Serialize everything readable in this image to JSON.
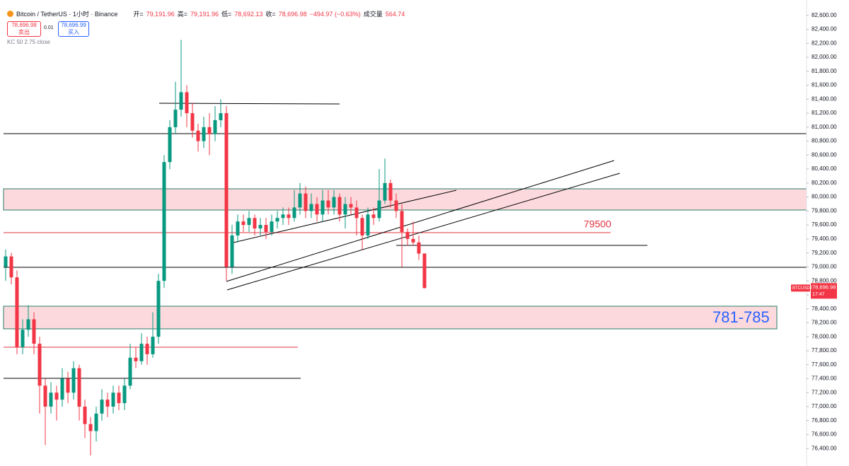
{
  "chart_data": {
    "type": "candlestick",
    "header": {
      "symbol": "Bitcoin / TetherUS · 1小时 · Binance",
      "open_label": "开=",
      "open": "79,191.96",
      "high_label": "高=",
      "high": "79,191.96",
      "low_label": "低=",
      "low": "78,692.13",
      "close_label": "收=",
      "close": "78,696.98",
      "change": "−494.97 (−0.63%)",
      "volume_label": "成交量",
      "volume": "564.74"
    },
    "sell_price": "78,696.98",
    "sell_label": "卖出",
    "spread": "0.01",
    "buy_price": "78,696.99",
    "buy_label": "买入",
    "indicator": "KC 50 2.75 close",
    "annotations": [
      "79500",
      "781-785"
    ],
    "price_tag": {
      "symbol": "BTCUSDT",
      "value": 78696.98,
      "label": "78,696.98",
      "countdown": "17:47"
    },
    "up_color": "#089981",
    "down_color": "#f23645",
    "open": [
      79000,
      79150,
      78850,
      77850,
      78100,
      78250,
      77900,
      77300,
      77000,
      77200,
      77100,
      77400,
      77200,
      77550,
      77000,
      76750,
      76650,
      76900,
      77100,
      77000,
      77200,
      77050,
      77300,
      77700,
      77650,
      77900,
      77750,
      78000,
      78800,
      80500,
      81000,
      81250,
      81500,
      81200,
      80950,
      80800,
      81000,
      80900,
      81100,
      81200,
      79000,
      79450,
      79650,
      79600,
      79700,
      79550,
      79600,
      79500,
      79650,
      79700,
      79750,
      79700,
      79850,
      80050,
      79800,
      79900,
      79750,
      79950,
      79850,
      80000,
      79750,
      79900,
      79850,
      79700,
      79450,
      79750,
      79700,
      79950,
      80200,
      79950,
      79800,
      79500,
      79400,
      79350,
      79191.96
    ],
    "high": [
      79250,
      79200,
      78950,
      78250,
      78450,
      78350,
      78000,
      77400,
      77350,
      77300,
      77550,
      77500,
      77650,
      77600,
      77100,
      76850,
      77000,
      77250,
      77200,
      77300,
      77300,
      77400,
      77900,
      77850,
      78050,
      78000,
      78350,
      78900,
      80600,
      81100,
      81650,
      82250,
      81600,
      81350,
      81050,
      81150,
      81200,
      81300,
      81400,
      81300,
      79600,
      79750,
      79750,
      79800,
      79750,
      79700,
      79700,
      79750,
      79800,
      79850,
      79850,
      80100,
      80200,
      80150,
      80050,
      80000,
      80100,
      80100,
      80100,
      80050,
      80000,
      80000,
      79950,
      79750,
      79850,
      79850,
      80400,
      80550,
      80250,
      80050,
      79900,
      79550,
      79650,
      79450,
      79191.96
    ],
    "low": [
      78800,
      78750,
      77750,
      77750,
      78000,
      77750,
      76900,
      76450,
      76900,
      76800,
      77000,
      77050,
      77100,
      76800,
      76550,
      76300,
      76500,
      76800,
      76850,
      76900,
      76950,
      76950,
      77250,
      77550,
      77600,
      77600,
      77700,
      77900,
      78700,
      80400,
      80900,
      81150,
      81000,
      80850,
      80650,
      80700,
      80600,
      80800,
      81000,
      78800,
      78900,
      79350,
      79500,
      79500,
      79450,
      79450,
      79400,
      79450,
      79550,
      79600,
      79600,
      79650,
      79750,
      79700,
      79700,
      79650,
      79650,
      79750,
      79750,
      79650,
      79550,
      79750,
      79450,
      79250,
      79400,
      79600,
      79650,
      79900,
      79850,
      79700,
      79000,
      79300,
      79300,
      79100,
      78692.13
    ],
    "close": [
      79150,
      78850,
      77850,
      78100,
      78250,
      77900,
      77300,
      77000,
      77200,
      77100,
      77400,
      77200,
      77550,
      77000,
      76750,
      76650,
      76900,
      77100,
      77000,
      77200,
      77050,
      77300,
      77700,
      77650,
      77900,
      77750,
      78000,
      78800,
      80500,
      81000,
      81250,
      81500,
      81200,
      80950,
      80800,
      81000,
      80900,
      81100,
      81200,
      79000,
      79450,
      79650,
      79600,
      79700,
      79550,
      79600,
      79500,
      79650,
      79700,
      79750,
      79700,
      79850,
      80050,
      79800,
      79900,
      79750,
      79950,
      79850,
      80000,
      79750,
      79900,
      79850,
      79700,
      79450,
      79750,
      79700,
      79950,
      80200,
      79950,
      79800,
      79500,
      79400,
      79350,
      79190,
      78696.98
    ],
    "ylim": [
      76150,
      82820
    ],
    "yticks": [
      {
        "value": 76400,
        "label": "76,400.00"
      },
      {
        "value": 76600,
        "label": "76,600.00"
      },
      {
        "value": 76800,
        "label": "76,800.00"
      },
      {
        "value": 77000,
        "label": "77,000.00"
      },
      {
        "value": 77200,
        "label": "77,200.00"
      },
      {
        "value": 77400,
        "label": "77,400.00"
      },
      {
        "value": 77600,
        "label": "77,600.00"
      },
      {
        "value": 77800,
        "label": "77,800.00"
      },
      {
        "value": 78000,
        "label": "78,000.00"
      },
      {
        "value": 78200,
        "label": "78,200.00"
      },
      {
        "value": 78400,
        "label": "78,400.00"
      },
      {
        "value": 78600,
        "label": "78,600.00"
      },
      {
        "value": 78800,
        "label": "78,800.00"
      },
      {
        "value": 79000,
        "label": "79,000.00"
      },
      {
        "value": 79200,
        "label": "79,200.00"
      },
      {
        "value": 79400,
        "label": "79,400.00"
      },
      {
        "value": 79600,
        "label": "79,600.00"
      },
      {
        "value": 79800,
        "label": "79,800.00"
      },
      {
        "value": 80000,
        "label": "80,000.00"
      },
      {
        "value": 80200,
        "label": "80,200.00"
      },
      {
        "value": 80400,
        "label": "80,400.00"
      },
      {
        "value": 80600,
        "label": "80,600.00"
      },
      {
        "value": 80800,
        "label": "80,800.00"
      },
      {
        "value": 81000,
        "label": "81,000.00"
      },
      {
        "value": 81200,
        "label": "81,200.00"
      },
      {
        "value": 81400,
        "label": "81,400.00"
      },
      {
        "value": 81600,
        "label": "81,600.00"
      },
      {
        "value": 81800,
        "label": "81,800.00"
      },
      {
        "value": 82000,
        "label": "82,000.00"
      },
      {
        "value": 82200,
        "label": "82,200.00"
      },
      {
        "value": 82400,
        "label": "82,400.00"
      },
      {
        "value": 82600,
        "label": "82,600.00"
      }
    ]
  }
}
